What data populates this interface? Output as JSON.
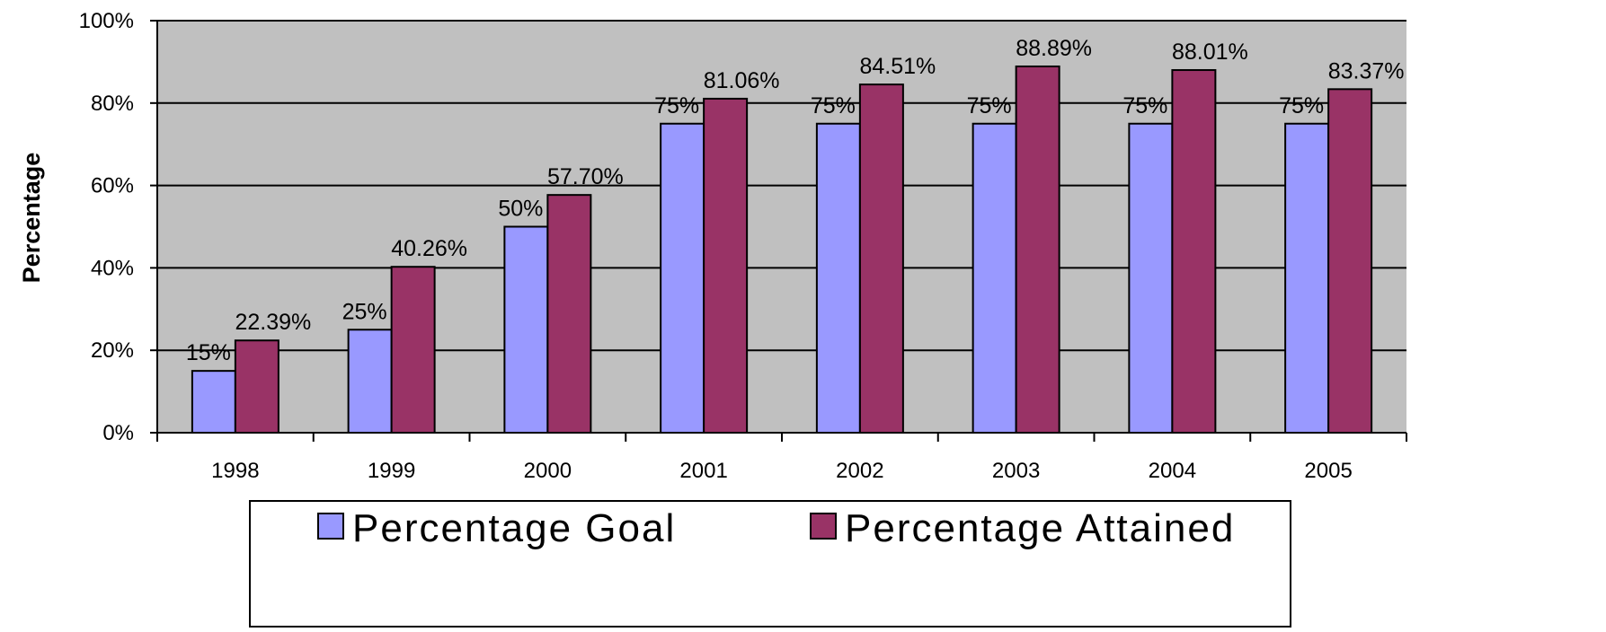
{
  "chart_data": {
    "type": "bar",
    "ylabel": "Percentage",
    "xlabel": "",
    "ylim": [
      0,
      100
    ],
    "yticks": [
      "0%",
      "20%",
      "40%",
      "60%",
      "80%",
      "100%"
    ],
    "grid": true,
    "legend_position": "bottom",
    "categories": [
      "1998",
      "1999",
      "2000",
      "2001",
      "2002",
      "2003",
      "2004",
      "2005"
    ],
    "series": [
      {
        "name": "Percentage Goal",
        "color": "#9999FF",
        "values": [
          15,
          25,
          50,
          75,
          75,
          75,
          75,
          75
        ],
        "labels": [
          "15%",
          "25%",
          "50%",
          "75%",
          "75%",
          "75%",
          "75%",
          "75%"
        ]
      },
      {
        "name": "Percentage Attained",
        "color": "#993366",
        "values": [
          22.39,
          40.26,
          57.7,
          81.06,
          84.51,
          88.89,
          88.01,
          83.37
        ],
        "labels": [
          "22.39%",
          "40.26%",
          "57.70%",
          "81.06%",
          "84.51%",
          "88.89%",
          "88.01%",
          "83.37%"
        ]
      }
    ],
    "plot_background": "#C0C0C0"
  }
}
